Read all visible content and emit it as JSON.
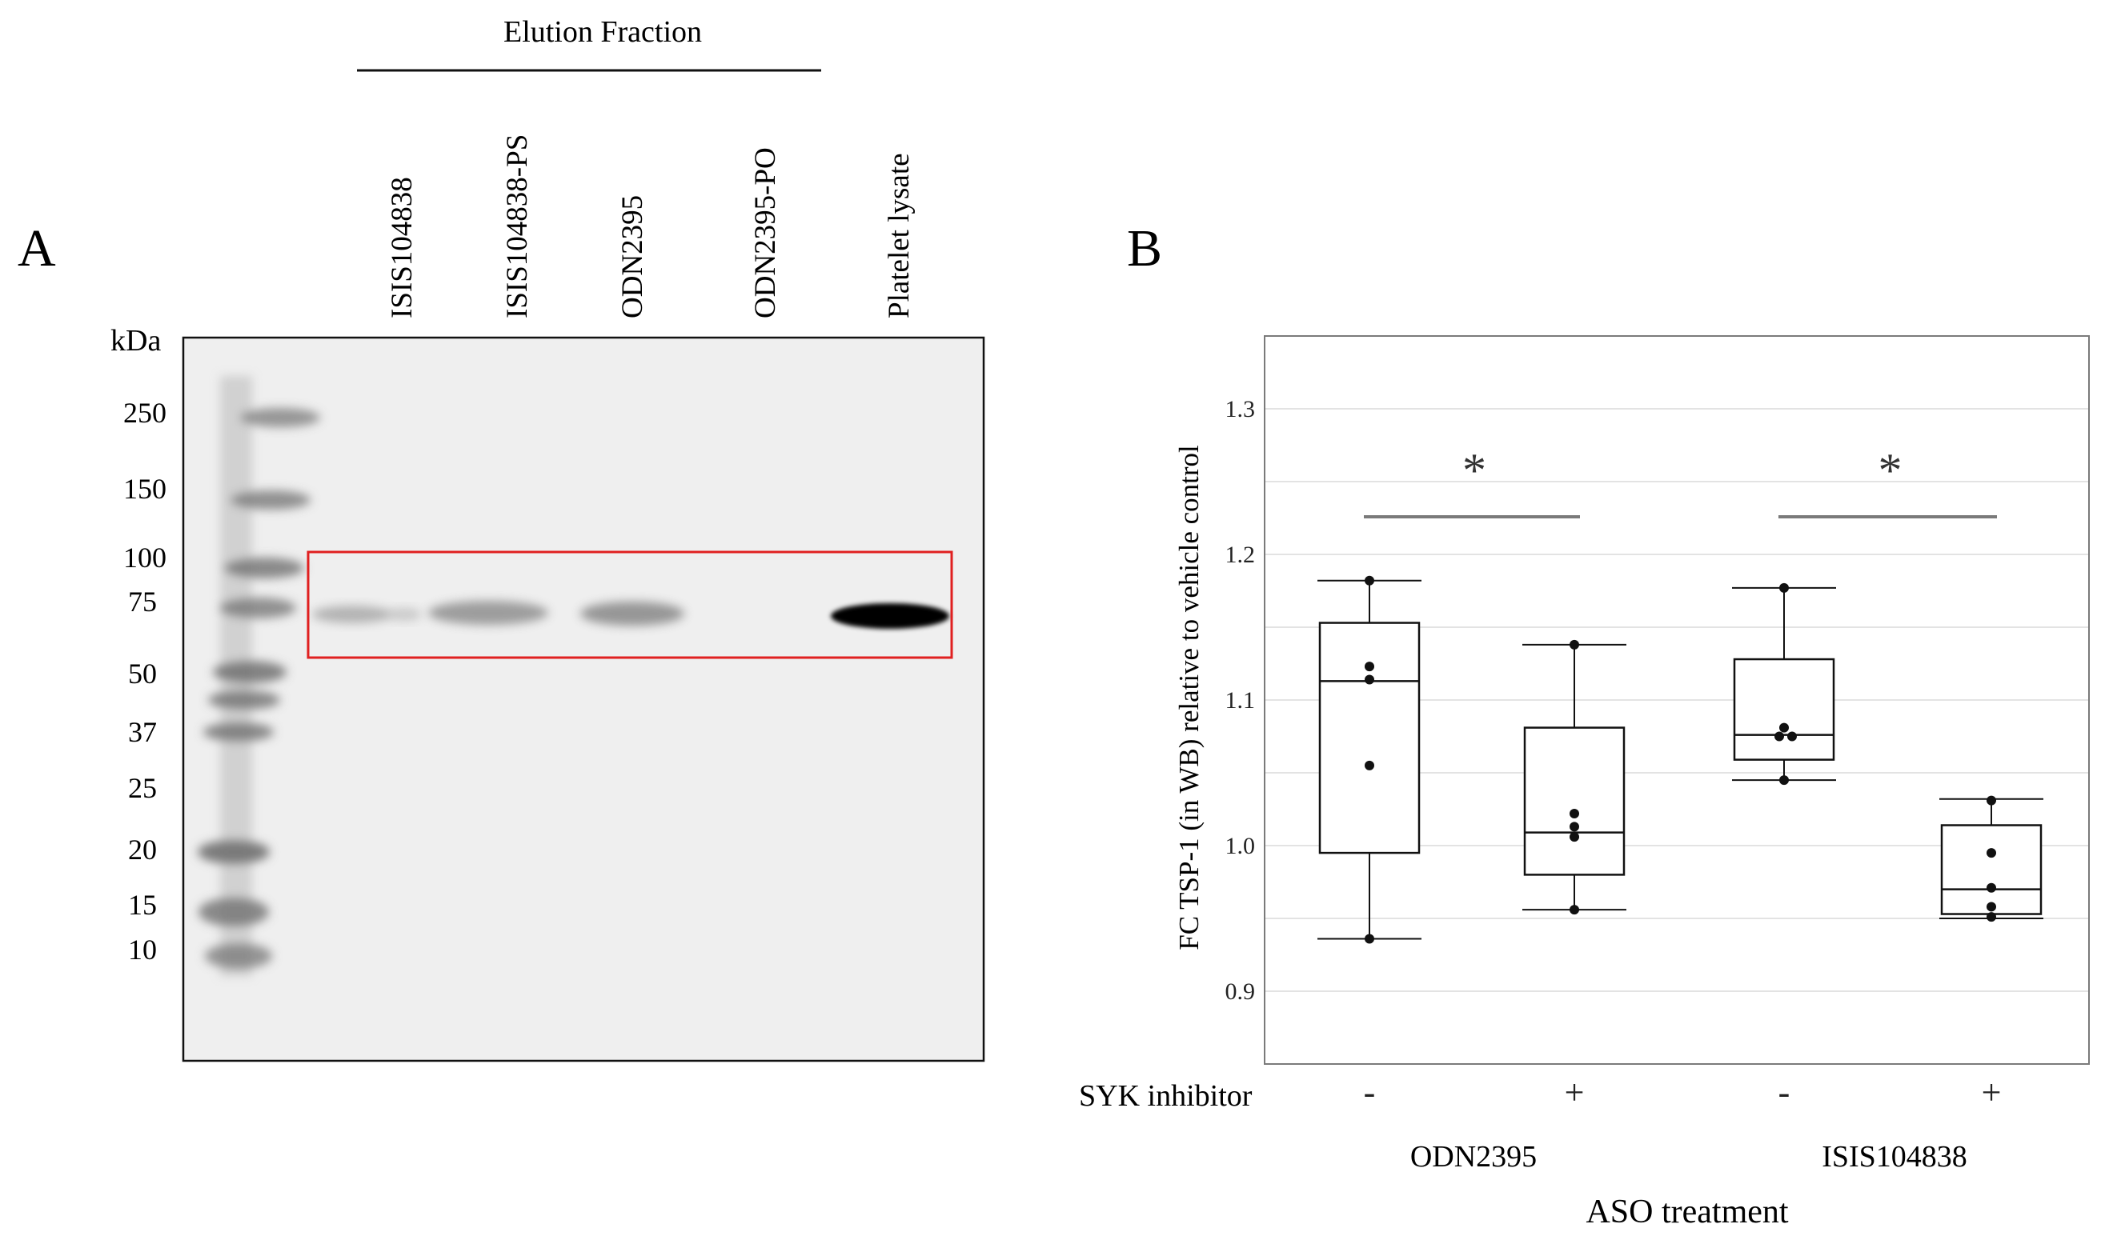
{
  "panel_a": {
    "label": "A",
    "header": "Elution Fraction",
    "lanes": [
      "ISIS104838",
      "ISIS104838-PS",
      "ODN2395",
      "ODN2395-PO",
      "Platelet lysate"
    ],
    "unit": "kDa",
    "markers": [
      "250",
      "150",
      "100",
      "75",
      "50",
      "37",
      "25",
      "20",
      "15",
      "10"
    ],
    "box_color": "#e02020"
  },
  "panel_b": {
    "label": "B",
    "chart_data": {
      "type": "box",
      "ylabel": "FC TSP-1 (in WB) relative to vehicle control",
      "xlabel": "ASO treatment",
      "ylim": [
        0.85,
        1.35
      ],
      "yticks": [
        "0.9",
        "1.0",
        "1.1",
        "1.2",
        "1.3"
      ],
      "row_label": "SYK inhibitor",
      "groups": [
        "ODN2395",
        "ISIS104838"
      ],
      "boxes": [
        {
          "group": "ODN2395",
          "syk": "-",
          "whisker_low": 0.936,
          "q1": 0.995,
          "median": 1.113,
          "q3": 1.153,
          "whisker_high": 1.182,
          "points": [
            0.936,
            1.055,
            1.114,
            1.123,
            1.182
          ]
        },
        {
          "group": "ODN2395",
          "syk": "+",
          "whisker_low": 0.956,
          "q1": 0.98,
          "median": 1.009,
          "q3": 1.081,
          "whisker_high": 1.138,
          "points": [
            0.956,
            1.006,
            1.013,
            1.022,
            1.138
          ]
        },
        {
          "group": "ISIS104838",
          "syk": "-",
          "whisker_low": 1.045,
          "q1": 1.059,
          "median": 1.076,
          "q3": 1.128,
          "whisker_high": 1.177,
          "points": [
            1.045,
            1.075,
            1.075,
            1.081,
            1.177
          ]
        },
        {
          "group": "ISIS104838",
          "syk": "+",
          "whisker_low": 0.95,
          "q1": 0.953,
          "median": 0.97,
          "q3": 1.014,
          "whisker_high": 1.032,
          "points": [
            0.951,
            0.958,
            0.971,
            0.995,
            1.031
          ]
        }
      ],
      "significance": [
        {
          "between": [
            "ODN2395 -",
            "ODN2395 +"
          ],
          "mark": "*"
        },
        {
          "between": [
            "ISIS104838 -",
            "ISIS104838 +"
          ],
          "mark": "*"
        }
      ],
      "grid": true
    }
  }
}
